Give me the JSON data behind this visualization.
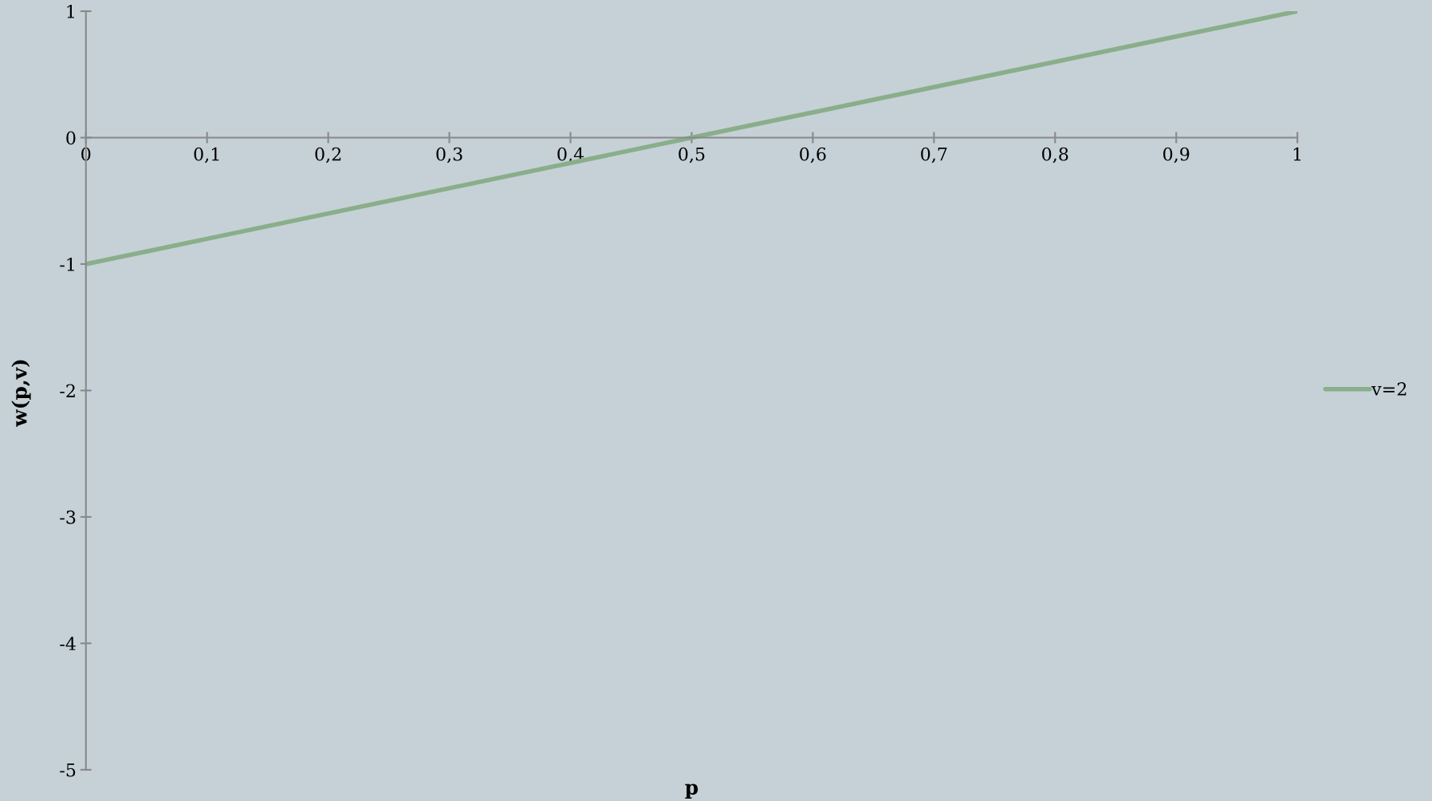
{
  "chart_data": {
    "type": "line",
    "xlabel": "p",
    "ylabel": "w(p,v)",
    "x": [
      0,
      0.5,
      1
    ],
    "series": [
      {
        "name": "v=2",
        "color": "#8aae8a",
        "values": [
          -1,
          0,
          1
        ]
      }
    ],
    "xlim": [
      0,
      1
    ],
    "ylim": [
      -5,
      1
    ],
    "xticks": [
      0,
      {
        "value": 0.1,
        "label": "0,1"
      },
      {
        "value": 0.2,
        "label": "0,2"
      },
      {
        "value": 0.3,
        "label": "0,3"
      },
      {
        "value": 0.4,
        "label": "0,4"
      },
      {
        "value": 0.5,
        "label": "0,5"
      },
      {
        "value": 0.6,
        "label": "0,6"
      },
      {
        "value": 0.7,
        "label": "0,7"
      },
      {
        "value": 0.8,
        "label": "0,8"
      },
      {
        "value": 0.9,
        "label": "0,9"
      },
      1
    ],
    "yticks": [
      -5,
      -4,
      -3,
      -2,
      -1,
      0,
      1
    ],
    "grid": false,
    "legend": "right",
    "marker": "none",
    "line_style": "solid"
  }
}
